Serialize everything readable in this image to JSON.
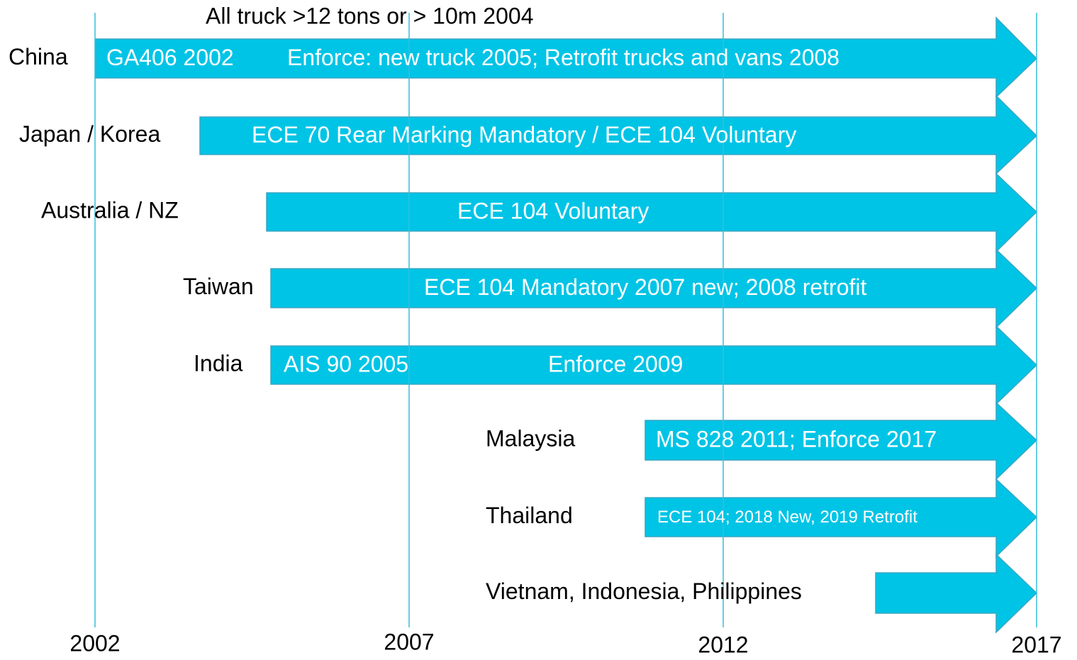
{
  "timeline": {
    "years": [
      "2002",
      "2007",
      "2012",
      "2017"
    ],
    "note": "All truck >12 tons or > 10m 2004",
    "rows": [
      {
        "country": "China",
        "texts": [
          "GA406 2002",
          "Enforce: new truck 2005; Retrofit trucks and vans 2008"
        ]
      },
      {
        "country": "Japan / Korea",
        "texts": [
          "ECE 70 Rear Marking Mandatory / ECE 104 Voluntary"
        ]
      },
      {
        "country": "Australia / NZ",
        "texts": [
          "ECE 104 Voluntary"
        ]
      },
      {
        "country": "Taiwan",
        "texts": [
          "ECE 104 Mandatory 2007 new; 2008 retrofit"
        ]
      },
      {
        "country": "India",
        "texts": [
          "AIS 90 2005",
          "Enforce 2009"
        ]
      },
      {
        "country": "Malaysia",
        "texts": [
          "MS 828 2011; Enforce 2017"
        ]
      },
      {
        "country": "Thailand",
        "texts": [
          "ECE 104; 2018 New, 2019 Retrofit"
        ]
      },
      {
        "country": "Vietnam, Indonesia, Philippines",
        "texts": []
      }
    ]
  }
}
